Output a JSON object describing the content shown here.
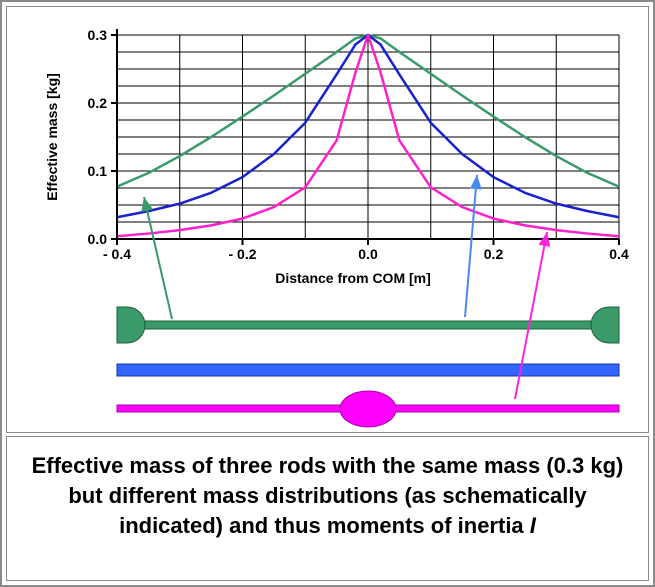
{
  "chart_data": {
    "type": "line",
    "xlabel": "Distance from COM  [m]",
    "ylabel": "Effective mass [kg]",
    "xlim": [
      -0.4,
      0.4
    ],
    "ylim": [
      0.0,
      0.3
    ],
    "xticks": [
      -0.4,
      -0.2,
      0.0,
      0.2,
      0.4
    ],
    "xtick_labels": [
      "- 0.4",
      "- 0.2",
      "0.0",
      "0.2",
      "0.4"
    ],
    "yticks": [
      0.0,
      0.1,
      0.2,
      0.3
    ],
    "ytick_labels": [
      "0.0",
      "0.1",
      "0.2",
      "0.3"
    ],
    "grid": true,
    "x": [
      -0.4,
      -0.35,
      -0.3,
      -0.25,
      -0.2,
      -0.15,
      -0.1,
      -0.05,
      -0.02,
      0.0,
      0.02,
      0.05,
      0.1,
      0.15,
      0.2,
      0.25,
      0.3,
      0.35,
      0.4
    ],
    "series": [
      {
        "color": "#3a9a6a",
        "values": [
          0.077,
          0.097,
          0.122,
          0.15,
          0.18,
          0.211,
          0.243,
          0.275,
          0.295,
          0.3,
          0.295,
          0.275,
          0.243,
          0.211,
          0.18,
          0.15,
          0.122,
          0.097,
          0.077
        ]
      },
      {
        "color": "#1a22cc",
        "values": [
          0.032,
          0.041,
          0.052,
          0.068,
          0.091,
          0.125,
          0.171,
          0.242,
          0.286,
          0.3,
          0.286,
          0.242,
          0.171,
          0.125,
          0.091,
          0.068,
          0.052,
          0.041,
          0.032
        ]
      },
      {
        "color": "#ff22cc",
        "values": [
          0.004,
          0.008,
          0.013,
          0.02,
          0.03,
          0.047,
          0.076,
          0.145,
          0.245,
          0.3,
          0.245,
          0.145,
          0.076,
          0.047,
          0.03,
          0.02,
          0.013,
          0.008,
          0.004
        ]
      }
    ]
  },
  "schematic": {
    "rods": [
      {
        "name": "green-rod-end-masses",
        "color": "#3a9a6a",
        "mass_position": "ends"
      },
      {
        "name": "blue-rod-uniform",
        "color": "#3366ff",
        "mass_position": "uniform"
      },
      {
        "name": "magenta-rod-center-mass",
        "color": "#ff00ff",
        "mass_position": "center"
      }
    ]
  },
  "caption": {
    "text": "Effective mass of three rods with the same mass (0.3 kg) but different mass distributions (as schematically indicated) and thus moments of inertia",
    "symbol": "I"
  }
}
